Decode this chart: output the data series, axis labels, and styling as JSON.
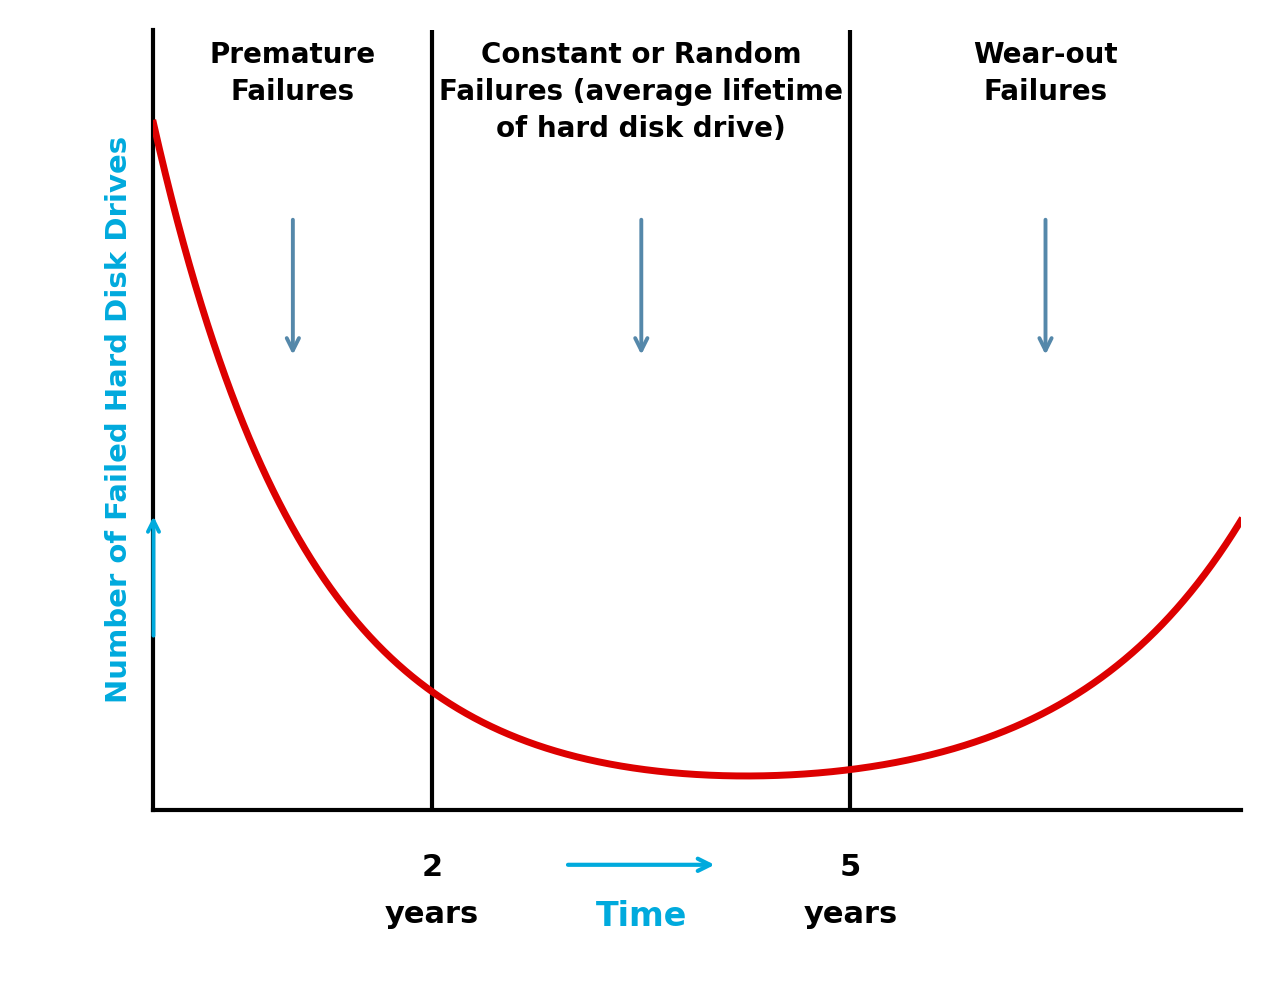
{
  "background_color": "#ffffff",
  "curve_color": "#dd0000",
  "curve_linewidth": 5.0,
  "axis_color": "#000000",
  "cyan_color": "#00aadd",
  "divider_x1": 2.0,
  "divider_x2": 5.0,
  "xlim": [
    0,
    7.8
  ],
  "ylim": [
    0,
    10
  ],
  "ylabel": "Number of Failed Hard Disk Drives",
  "ylabel_color": "#00aadd",
  "ylabel_fontsize": 21,
  "ylabel_fontweight": "bold",
  "xlabel": "Time",
  "xlabel_color": "#00aadd",
  "xlabel_fontsize": 24,
  "xlabel_fontweight": "bold",
  "label1_title": "Premature\nFailures",
  "label2_title": "Constant or Random\nFailures (average lifetime\nof hard disk drive)",
  "label3_title": "Wear-out\nFailures",
  "label_fontsize": 20,
  "label_fontweight": "bold",
  "tick_fontsize": 22,
  "tick_fontweight": "bold",
  "arrow_color": "#5588aa",
  "arrow_linewidth": 2.5,
  "section_centers": [
    1.0,
    3.5,
    6.4
  ]
}
